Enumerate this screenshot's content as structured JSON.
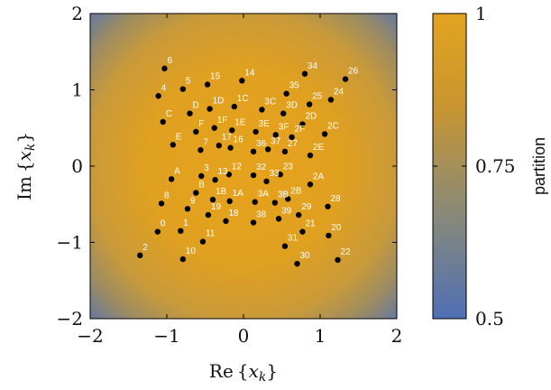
{
  "chart_data": {
    "type": "scatter",
    "xlabel": "Re {x_k}",
    "ylabel": "Im {x_k}",
    "xlim": [
      -2,
      2
    ],
    "ylim": [
      -2,
      2
    ],
    "xticks": [
      -2,
      -1,
      0,
      1,
      2
    ],
    "yticks": [
      -2,
      -1,
      0,
      1,
      2
    ],
    "xtick_labels": [
      "−2",
      "−1",
      "0",
      "1",
      "2"
    ],
    "ytick_labels": [
      "−2",
      "−1",
      "0",
      "1",
      "2"
    ],
    "grid": false,
    "background": "heatmap: partition value, 1 at center fading to 0.5 at corners",
    "colorbar": {
      "label": "partition",
      "range": [
        0.5,
        1
      ],
      "ticks": [
        0.5,
        0.75,
        1
      ],
      "tick_labels": [
        "0.5",
        "0.75",
        "1"
      ],
      "color_low": "#4f6fb5",
      "color_high": "#e0a020"
    },
    "points": [
      {
        "label": "0",
        "x": -1.12,
        "y": -0.86
      },
      {
        "label": "1",
        "x": -0.82,
        "y": -0.85
      },
      {
        "label": "2",
        "x": -1.35,
        "y": -1.17
      },
      {
        "label": "3",
        "x": -0.55,
        "y": -0.13
      },
      {
        "label": "4",
        "x": -1.11,
        "y": 0.92
      },
      {
        "label": "5",
        "x": -0.79,
        "y": 1.01
      },
      {
        "label": "6",
        "x": -1.03,
        "y": 1.28
      },
      {
        "label": "7",
        "x": -0.56,
        "y": 0.21
      },
      {
        "label": "8",
        "x": -1.07,
        "y": -0.49
      },
      {
        "label": "9",
        "x": -0.73,
        "y": -0.56
      },
      {
        "label": "10",
        "x": -0.79,
        "y": -1.22
      },
      {
        "label": "11",
        "x": -0.53,
        "y": -0.99
      },
      {
        "label": "12",
        "x": -0.19,
        "y": -0.11
      },
      {
        "label": "13",
        "x": -0.37,
        "y": -0.18
      },
      {
        "label": "14",
        "x": -0.02,
        "y": 1.12
      },
      {
        "label": "15",
        "x": -0.47,
        "y": 1.07
      },
      {
        "label": "16",
        "x": -0.17,
        "y": 0.24
      },
      {
        "label": "17",
        "x": -0.32,
        "y": 0.27
      },
      {
        "label": "18",
        "x": -0.23,
        "y": -0.72
      },
      {
        "label": "19",
        "x": -0.46,
        "y": -0.64
      },
      {
        "label": "20",
        "x": 1.11,
        "y": -0.91
      },
      {
        "label": "21",
        "x": 0.77,
        "y": -0.86
      },
      {
        "label": "22",
        "x": 1.23,
        "y": -1.23
      },
      {
        "label": "23",
        "x": 0.48,
        "y": -0.11
      },
      {
        "label": "24",
        "x": 1.14,
        "y": 0.87
      },
      {
        "label": "25",
        "x": 0.86,
        "y": 0.81
      },
      {
        "label": "26",
        "x": 1.33,
        "y": 1.14
      },
      {
        "label": "27",
        "x": 0.54,
        "y": 0.19
      },
      {
        "label": "28",
        "x": 1.1,
        "y": -0.53
      },
      {
        "label": "29",
        "x": 0.72,
        "y": -0.64
      },
      {
        "label": "30",
        "x": 0.7,
        "y": -1.28
      },
      {
        "label": "31",
        "x": 0.54,
        "y": -1.05
      },
      {
        "label": "32",
        "x": 0.13,
        "y": -0.12
      },
      {
        "label": "33",
        "x": 0.3,
        "y": -0.2
      },
      {
        "label": "34",
        "x": 0.8,
        "y": 1.21
      },
      {
        "label": "35",
        "x": 0.56,
        "y": 0.95
      },
      {
        "label": "36",
        "x": 0.13,
        "y": 0.19
      },
      {
        "label": "37",
        "x": 0.32,
        "y": 0.22
      },
      {
        "label": "38",
        "x": 0.13,
        "y": -0.74
      },
      {
        "label": "39",
        "x": 0.46,
        "y": -0.69
      },
      {
        "label": "A",
        "x": -0.94,
        "y": -0.17
      },
      {
        "label": "B",
        "x": -0.62,
        "y": -0.35
      },
      {
        "label": "C",
        "x": -1.05,
        "y": 0.58
      },
      {
        "label": "D",
        "x": -0.7,
        "y": 0.69
      },
      {
        "label": "E",
        "x": -0.92,
        "y": 0.28
      },
      {
        "label": "F",
        "x": -0.62,
        "y": 0.45
      },
      {
        "label": "1A",
        "x": -0.18,
        "y": -0.46
      },
      {
        "label": "1B",
        "x": -0.4,
        "y": -0.44
      },
      {
        "label": "1C",
        "x": -0.12,
        "y": 0.78
      },
      {
        "label": "1D",
        "x": -0.44,
        "y": 0.75
      },
      {
        "label": "1E",
        "x": -0.15,
        "y": 0.47
      },
      {
        "label": "1F",
        "x": -0.38,
        "y": 0.5
      },
      {
        "label": "2A",
        "x": 0.87,
        "y": -0.24
      },
      {
        "label": "2B",
        "x": 0.58,
        "y": -0.43
      },
      {
        "label": "2C",
        "x": 1.06,
        "y": 0.42
      },
      {
        "label": "2D",
        "x": 0.77,
        "y": 0.55
      },
      {
        "label": "2E",
        "x": 0.87,
        "y": 0.14
      },
      {
        "label": "2F",
        "x": 0.63,
        "y": 0.38
      },
      {
        "label": "3A",
        "x": 0.15,
        "y": -0.47
      },
      {
        "label": "3B",
        "x": 0.41,
        "y": -0.48
      },
      {
        "label": "3C",
        "x": 0.24,
        "y": 0.74
      },
      {
        "label": "3D",
        "x": 0.52,
        "y": 0.69
      },
      {
        "label": "3E",
        "x": 0.16,
        "y": 0.45
      },
      {
        "label": "3F",
        "x": 0.42,
        "y": 0.41
      }
    ]
  }
}
